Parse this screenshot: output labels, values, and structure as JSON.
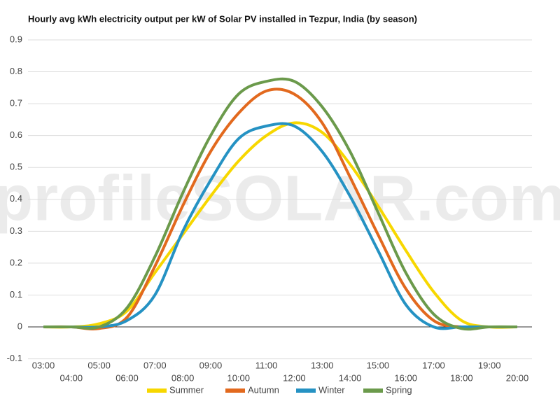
{
  "chart_data": {
    "type": "line",
    "title": "Hourly avg kWh electricity output per kW of Solar PV installed in Tezpur, India (by season)",
    "watermark": "profileSOLAR.com",
    "categories": [
      "03:00",
      "04:00",
      "05:00",
      "06:00",
      "07:00",
      "08:00",
      "09:00",
      "10:00",
      "11:00",
      "12:00",
      "13:00",
      "14:00",
      "15:00",
      "16:00",
      "17:00",
      "18:00",
      "19:00",
      "20:00"
    ],
    "series": [
      {
        "name": "Summer",
        "color": "#f7d700",
        "values": [
          0,
          0,
          0.01,
          0.05,
          0.17,
          0.29,
          0.41,
          0.52,
          0.6,
          0.64,
          0.61,
          0.51,
          0.38,
          0.24,
          0.11,
          0.02,
          0,
          0
        ]
      },
      {
        "name": "Autumn",
        "color": "#e2691e",
        "values": [
          0,
          0,
          -0.005,
          0.03,
          0.19,
          0.38,
          0.55,
          0.67,
          0.74,
          0.73,
          0.64,
          0.47,
          0.29,
          0.12,
          0.02,
          0,
          0,
          0
        ]
      },
      {
        "name": "Winter",
        "color": "#2592c3",
        "values": [
          0,
          0,
          0,
          0.02,
          0.1,
          0.3,
          0.46,
          0.59,
          0.63,
          0.63,
          0.55,
          0.41,
          0.24,
          0.07,
          0,
          0,
          0,
          0
        ]
      },
      {
        "name": "Spring",
        "color": "#6b9a4b",
        "values": [
          0,
          0,
          0,
          0.06,
          0.22,
          0.42,
          0.6,
          0.73,
          0.77,
          0.77,
          0.69,
          0.55,
          0.36,
          0.17,
          0.04,
          -0.005,
          0,
          0
        ]
      }
    ],
    "ylim": [
      -0.1,
      0.9
    ],
    "yticks": [
      -0.1,
      0.0,
      0.1,
      0.2,
      0.3,
      0.4,
      0.5,
      0.6,
      0.7,
      0.8,
      0.9
    ],
    "grid": true
  }
}
